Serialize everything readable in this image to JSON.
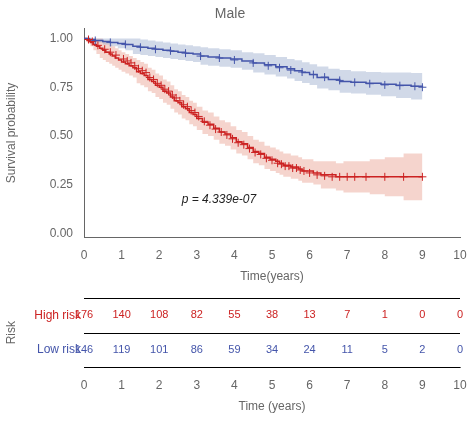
{
  "chart_data": [
    {
      "type": "line",
      "title": "Male",
      "x_label": "Time(years)",
      "y_label": "Survival probability",
      "xlim": [
        0,
        10
      ],
      "ylim": [
        -0.02,
        1.05
      ],
      "xticks": [
        0,
        1,
        2,
        3,
        4,
        5,
        6,
        7,
        8,
        9,
        10
      ],
      "yticks": [
        {
          "value": 0.0,
          "label": "0.00"
        },
        0.25,
        {
          "value": 0.5,
          "label": "0.50"
        },
        0.75,
        {
          "value": 1.0,
          "label": "1.00"
        }
      ],
      "grid": false,
      "annotations": [
        {
          "text": "p = 4.339e-07"
        }
      ],
      "series": [
        {
          "type": "area",
          "color": "#e8a090",
          "x": [
            0.0,
            0.08,
            0.17,
            0.25,
            0.33,
            0.42,
            0.5,
            0.58,
            0.67,
            0.75,
            0.83,
            0.92,
            1.0,
            1.1,
            1.2,
            1.3,
            1.4,
            1.5,
            1.6,
            1.7,
            1.8,
            1.9,
            2.0,
            2.1,
            2.2,
            2.3,
            2.4,
            2.5,
            2.6,
            2.7,
            2.8,
            2.9,
            3.0,
            3.15,
            3.3,
            3.45,
            3.6,
            3.75,
            3.9,
            4.05,
            4.2,
            4.35,
            4.5,
            4.65,
            4.8,
            4.95,
            5.1,
            5.2,
            5.3,
            5.4,
            5.5,
            5.6,
            5.7,
            5.8,
            5.9,
            6.1,
            6.3,
            6.5,
            6.7,
            6.9,
            7.1,
            7.3,
            7.6,
            8.0,
            8.5,
            9.0
          ],
          "lower": [
            1.0,
            0.98,
            0.96,
            0.94,
            0.92,
            0.9,
            0.89,
            0.88,
            0.87,
            0.86,
            0.85,
            0.84,
            0.83,
            0.82,
            0.81,
            0.8,
            0.77,
            0.76,
            0.75,
            0.73,
            0.72,
            0.7,
            0.69,
            0.67,
            0.66,
            0.64,
            0.62,
            0.61,
            0.59,
            0.58,
            0.56,
            0.55,
            0.53,
            0.51,
            0.5,
            0.48,
            0.46,
            0.45,
            0.43,
            0.41,
            0.4,
            0.38,
            0.36,
            0.35,
            0.33,
            0.32,
            0.31,
            0.3,
            0.29,
            0.29,
            0.28,
            0.28,
            0.27,
            0.26,
            0.26,
            0.25,
            0.23,
            0.23,
            0.22,
            0.21,
            0.21,
            0.21,
            0.2,
            0.19,
            0.17,
            0.16
          ],
          "upper": [
            1.0,
            1.0,
            1.0,
            1.0,
            1.0,
            1.0,
            0.99,
            0.98,
            0.97,
            0.96,
            0.95,
            0.94,
            0.93,
            0.92,
            0.91,
            0.9,
            0.89,
            0.88,
            0.87,
            0.85,
            0.84,
            0.82,
            0.81,
            0.79,
            0.78,
            0.76,
            0.74,
            0.73,
            0.71,
            0.7,
            0.68,
            0.67,
            0.65,
            0.63,
            0.62,
            0.6,
            0.58,
            0.57,
            0.55,
            0.53,
            0.52,
            0.5,
            0.48,
            0.47,
            0.45,
            0.44,
            0.43,
            0.42,
            0.41,
            0.41,
            0.4,
            0.4,
            0.39,
            0.38,
            0.38,
            0.37,
            0.37,
            0.37,
            0.36,
            0.37,
            0.37,
            0.37,
            0.38,
            0.39,
            0.41,
            0.42
          ]
        },
        {
          "type": "area",
          "color": "#99aacc",
          "x": [
            0.0,
            0.15,
            0.3,
            0.5,
            0.7,
            0.9,
            1.1,
            1.3,
            1.5,
            1.7,
            1.9,
            2.1,
            2.3,
            2.5,
            2.7,
            2.9,
            3.1,
            3.3,
            3.6,
            3.9,
            4.2,
            4.5,
            4.8,
            5.1,
            5.4,
            5.6,
            5.8,
            6.0,
            6.2,
            6.5,
            6.8,
            7.1,
            7.5,
            7.9,
            8.3,
            8.7,
            9.0
          ],
          "lower": [
            1.0,
            0.99,
            0.98,
            0.97,
            0.96,
            0.95,
            0.94,
            0.92,
            0.915,
            0.91,
            0.905,
            0.9,
            0.895,
            0.89,
            0.885,
            0.88,
            0.865,
            0.86,
            0.855,
            0.85,
            0.84,
            0.825,
            0.815,
            0.805,
            0.795,
            0.782,
            0.772,
            0.762,
            0.744,
            0.735,
            0.722,
            0.718,
            0.712,
            0.704,
            0.695,
            0.687,
            0.68
          ],
          "upper": [
            1.0,
            1.0,
            1.0,
            1.0,
            1.0,
            1.0,
            1.0,
            1.0,
            0.995,
            0.99,
            0.985,
            0.98,
            0.975,
            0.97,
            0.965,
            0.96,
            0.955,
            0.95,
            0.945,
            0.94,
            0.93,
            0.925,
            0.915,
            0.905,
            0.895,
            0.888,
            0.878,
            0.868,
            0.856,
            0.845,
            0.838,
            0.832,
            0.828,
            0.826,
            0.825,
            0.823,
            0.82
          ]
        },
        {
          "name": "High risk",
          "type": "step",
          "color": "#cc2222",
          "x": [
            0.0,
            0.08,
            0.17,
            0.25,
            0.33,
            0.42,
            0.5,
            0.58,
            0.67,
            0.75,
            0.83,
            0.92,
            1.0,
            1.1,
            1.2,
            1.3,
            1.4,
            1.5,
            1.6,
            1.7,
            1.8,
            1.9,
            2.0,
            2.1,
            2.2,
            2.3,
            2.4,
            2.5,
            2.6,
            2.7,
            2.8,
            2.9,
            3.0,
            3.15,
            3.3,
            3.45,
            3.6,
            3.75,
            3.9,
            4.05,
            4.2,
            4.35,
            4.5,
            4.65,
            4.8,
            4.95,
            5.1,
            5.2,
            5.3,
            5.4,
            5.5,
            5.6,
            5.7,
            5.8,
            5.9,
            6.1,
            6.3,
            6.5,
            6.7,
            6.9,
            7.1,
            7.3,
            7.6,
            8.0,
            8.5,
            9.0
          ],
          "values": [
            1.0,
            0.99,
            0.98,
            0.97,
            0.96,
            0.95,
            0.94,
            0.93,
            0.92,
            0.91,
            0.9,
            0.89,
            0.88,
            0.87,
            0.86,
            0.85,
            0.83,
            0.82,
            0.81,
            0.79,
            0.78,
            0.76,
            0.75,
            0.73,
            0.72,
            0.7,
            0.68,
            0.67,
            0.65,
            0.64,
            0.62,
            0.61,
            0.59,
            0.57,
            0.56,
            0.54,
            0.52,
            0.51,
            0.49,
            0.47,
            0.46,
            0.44,
            0.42,
            0.41,
            0.39,
            0.38,
            0.37,
            0.36,
            0.35,
            0.35,
            0.34,
            0.34,
            0.33,
            0.32,
            0.32,
            0.31,
            0.3,
            0.3,
            0.29,
            0.29,
            0.29,
            0.29,
            0.29,
            0.29,
            0.29,
            0.29
          ]
        },
        {
          "name": "Low risk",
          "type": "step",
          "color": "#4455aa",
          "x": [
            0.0,
            0.15,
            0.3,
            0.5,
            0.7,
            0.9,
            1.1,
            1.3,
            1.5,
            1.7,
            1.9,
            2.1,
            2.3,
            2.5,
            2.7,
            2.9,
            3.1,
            3.3,
            3.6,
            3.9,
            4.2,
            4.5,
            4.8,
            5.1,
            5.4,
            5.6,
            5.8,
            6.0,
            6.2,
            6.5,
            6.8,
            7.1,
            7.5,
            7.9,
            8.3,
            8.7,
            9.0
          ],
          "values": [
            1.0,
            0.995,
            0.99,
            0.985,
            0.98,
            0.975,
            0.97,
            0.96,
            0.955,
            0.95,
            0.945,
            0.94,
            0.935,
            0.93,
            0.925,
            0.92,
            0.91,
            0.905,
            0.9,
            0.895,
            0.885,
            0.875,
            0.865,
            0.855,
            0.845,
            0.835,
            0.825,
            0.815,
            0.8,
            0.79,
            0.78,
            0.775,
            0.77,
            0.765,
            0.76,
            0.755,
            0.75
          ]
        },
        {
          "type": "scatter",
          "marker": "+",
          "color": "#cc2222",
          "x": [
            0.12,
            0.22,
            0.37,
            0.55,
            0.7,
            0.85,
            1.05,
            1.15,
            1.25,
            1.35,
            1.45,
            1.55,
            1.65,
            1.75,
            1.85,
            1.95,
            2.05,
            2.15,
            2.25,
            2.35,
            2.45,
            2.55,
            2.65,
            2.75,
            2.85,
            2.95,
            3.05,
            3.2,
            3.35,
            3.5,
            3.65,
            3.8,
            3.95,
            4.1,
            4.25,
            4.4,
            4.55,
            4.7,
            4.85,
            5.0,
            5.15,
            5.25,
            5.35,
            5.45,
            5.55,
            5.65,
            5.75,
            5.85,
            6.0,
            6.2,
            6.4,
            6.6,
            6.8,
            7.0,
            7.2,
            7.5,
            8.0,
            8.5,
            9.0
          ],
          "values": [
            0.995,
            0.985,
            0.965,
            0.945,
            0.93,
            0.915,
            0.895,
            0.885,
            0.875,
            0.86,
            0.845,
            0.835,
            0.825,
            0.8,
            0.79,
            0.77,
            0.76,
            0.74,
            0.73,
            0.71,
            0.695,
            0.68,
            0.66,
            0.65,
            0.63,
            0.62,
            0.6,
            0.575,
            0.555,
            0.535,
            0.52,
            0.505,
            0.485,
            0.465,
            0.455,
            0.435,
            0.415,
            0.405,
            0.385,
            0.375,
            0.36,
            0.355,
            0.345,
            0.345,
            0.335,
            0.335,
            0.325,
            0.32,
            0.31,
            0.3,
            0.295,
            0.29,
            0.29,
            0.29,
            0.29,
            0.29,
            0.29,
            0.29,
            0.29
          ]
        },
        {
          "type": "scatter",
          "marker": "+",
          "color": "#4455aa",
          "x": [
            0.3,
            0.7,
            1.1,
            1.5,
            1.9,
            2.3,
            2.7,
            3.1,
            3.6,
            4.0,
            4.5,
            4.9,
            5.2,
            5.5,
            5.8,
            6.1,
            6.4,
            6.8,
            7.2,
            7.6,
            8.0,
            8.4,
            8.8,
            9.0
          ],
          "values": [
            0.99,
            0.98,
            0.97,
            0.955,
            0.945,
            0.937,
            0.925,
            0.91,
            0.9,
            0.89,
            0.875,
            0.86,
            0.85,
            0.838,
            0.828,
            0.815,
            0.802,
            0.785,
            0.775,
            0.768,
            0.762,
            0.758,
            0.755,
            0.75
          ]
        }
      ]
    },
    {
      "type": "table",
      "x_label": "Time (years)",
      "y_label": "Risk",
      "xlim": [
        0,
        10
      ],
      "xticks": [
        0,
        1,
        2,
        3,
        4,
        5,
        6,
        7,
        8,
        9,
        10
      ],
      "data_labels": true,
      "x": [
        0,
        1,
        2,
        3,
        4,
        5,
        6,
        7,
        8,
        9,
        10
      ],
      "series": [
        {
          "name": "High risk",
          "color": "#cc2222",
          "values": [
            176,
            140,
            108,
            82,
            55,
            38,
            13,
            7,
            1,
            0,
            0
          ]
        },
        {
          "name": "Low risk",
          "color": "#4455aa",
          "values": [
            146,
            119,
            101,
            86,
            59,
            34,
            24,
            11,
            5,
            2,
            0
          ]
        }
      ]
    }
  ]
}
